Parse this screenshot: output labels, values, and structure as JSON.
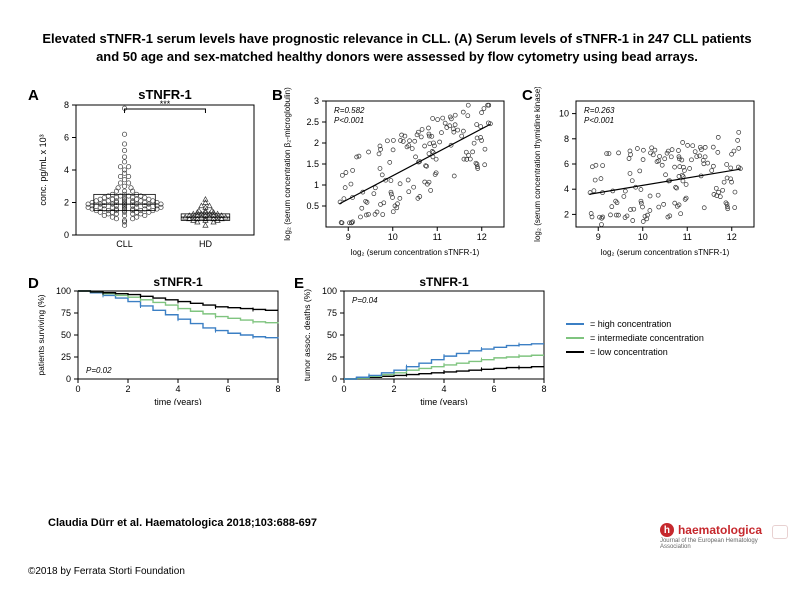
{
  "title": "Elevated sTNFR-1 serum levels have prognostic relevance in CLL. (A) Serum levels of sTNFR-1 in 247 CLL patients and 50 age and sex-matched healthy donors were assessed by flow cytometry using bead arrays.",
  "panelA": {
    "label": "A",
    "title": "sTNFR-1",
    "ylabel": "conc. pg/mL x 10³",
    "sig": "***",
    "yticks": [
      0,
      2,
      4,
      6,
      8
    ],
    "xcats": [
      "CLL",
      "HD"
    ],
    "cll_points": [
      [
        1,
        0.6
      ],
      [
        1,
        0.8
      ],
      [
        1,
        0.9
      ],
      [
        0.9,
        1.0
      ],
      [
        1.1,
        1.0
      ],
      [
        0.85,
        1.1
      ],
      [
        1.15,
        1.1
      ],
      [
        0.75,
        1.2
      ],
      [
        1.25,
        1.2
      ],
      [
        1,
        1.2
      ],
      [
        0.8,
        1.3
      ],
      [
        1.2,
        1.3
      ],
      [
        0.9,
        1.3
      ],
      [
        1.1,
        1.3
      ],
      [
        0.7,
        1.4
      ],
      [
        1.3,
        1.4
      ],
      [
        0.85,
        1.4
      ],
      [
        1.15,
        1.4
      ],
      [
        1,
        1.4
      ],
      [
        0.65,
        1.5
      ],
      [
        1.35,
        1.5
      ],
      [
        0.8,
        1.5
      ],
      [
        1.2,
        1.5
      ],
      [
        0.9,
        1.5
      ],
      [
        1.1,
        1.5
      ],
      [
        1,
        1.5
      ],
      [
        0.6,
        1.6
      ],
      [
        1.4,
        1.6
      ],
      [
        0.75,
        1.6
      ],
      [
        1.25,
        1.6
      ],
      [
        0.9,
        1.6
      ],
      [
        1.1,
        1.6
      ],
      [
        1,
        1.6
      ],
      [
        0.55,
        1.7
      ],
      [
        1.45,
        1.7
      ],
      [
        0.7,
        1.7
      ],
      [
        1.3,
        1.7
      ],
      [
        0.85,
        1.7
      ],
      [
        1.15,
        1.7
      ],
      [
        1,
        1.7
      ],
      [
        0.6,
        1.8
      ],
      [
        1.4,
        1.8
      ],
      [
        0.75,
        1.8
      ],
      [
        1.25,
        1.8
      ],
      [
        0.9,
        1.8
      ],
      [
        1.1,
        1.8
      ],
      [
        1,
        1.8
      ],
      [
        0.55,
        1.9
      ],
      [
        1.45,
        1.9
      ],
      [
        0.7,
        1.9
      ],
      [
        1.3,
        1.9
      ],
      [
        0.85,
        1.9
      ],
      [
        1.15,
        1.9
      ],
      [
        1,
        1.9
      ],
      [
        0.6,
        2.0
      ],
      [
        1.4,
        2.0
      ],
      [
        0.75,
        2.0
      ],
      [
        1.25,
        2.0
      ],
      [
        0.9,
        2.0
      ],
      [
        1.1,
        2.0
      ],
      [
        1,
        2.0
      ],
      [
        0.65,
        2.1
      ],
      [
        1.35,
        2.1
      ],
      [
        0.8,
        2.1
      ],
      [
        1.2,
        2.1
      ],
      [
        0.9,
        2.1
      ],
      [
        1.1,
        2.1
      ],
      [
        1,
        2.1
      ],
      [
        0.7,
        2.2
      ],
      [
        1.3,
        2.2
      ],
      [
        0.85,
        2.2
      ],
      [
        1.15,
        2.2
      ],
      [
        1,
        2.2
      ],
      [
        0.75,
        2.3
      ],
      [
        1.25,
        2.3
      ],
      [
        0.9,
        2.3
      ],
      [
        1.1,
        2.3
      ],
      [
        1,
        2.3
      ],
      [
        0.8,
        2.4
      ],
      [
        1.2,
        2.4
      ],
      [
        0.95,
        2.4
      ],
      [
        1.05,
        2.4
      ],
      [
        0.85,
        2.5
      ],
      [
        1.15,
        2.5
      ],
      [
        1,
        2.5
      ],
      [
        0.9,
        2.7
      ],
      [
        1.1,
        2.7
      ],
      [
        1,
        2.7
      ],
      [
        0.92,
        2.9
      ],
      [
        1.08,
        2.9
      ],
      [
        1,
        3.0
      ],
      [
        0.95,
        3.2
      ],
      [
        1.05,
        3.2
      ],
      [
        1,
        3.4
      ],
      [
        0.95,
        3.6
      ],
      [
        1.05,
        3.6
      ],
      [
        1,
        3.8
      ],
      [
        1,
        4.0
      ],
      [
        0.95,
        4.2
      ],
      [
        1.05,
        4.2
      ],
      [
        1,
        4.5
      ],
      [
        1,
        4.8
      ],
      [
        1,
        5.2
      ],
      [
        1,
        5.6
      ],
      [
        1,
        6.2
      ],
      [
        1,
        7.8
      ]
    ],
    "hd_points": [
      [
        2,
        0.6
      ],
      [
        1.9,
        0.8
      ],
      [
        2.1,
        0.8
      ],
      [
        1.85,
        0.9
      ],
      [
        2.15,
        0.9
      ],
      [
        2,
        0.9
      ],
      [
        1.8,
        1.0
      ],
      [
        2.2,
        1.0
      ],
      [
        1.9,
        1.0
      ],
      [
        2.1,
        1.0
      ],
      [
        2,
        1.0
      ],
      [
        1.75,
        1.1
      ],
      [
        2.25,
        1.1
      ],
      [
        1.85,
        1.1
      ],
      [
        2.15,
        1.1
      ],
      [
        1.95,
        1.1
      ],
      [
        2.05,
        1.1
      ],
      [
        1.8,
        1.2
      ],
      [
        2.2,
        1.2
      ],
      [
        1.9,
        1.2
      ],
      [
        2.1,
        1.2
      ],
      [
        2,
        1.2
      ],
      [
        1.85,
        1.3
      ],
      [
        2.15,
        1.3
      ],
      [
        1.95,
        1.3
      ],
      [
        2.05,
        1.3
      ],
      [
        1.9,
        1.4
      ],
      [
        2.1,
        1.4
      ],
      [
        2,
        1.4
      ],
      [
        1.92,
        1.5
      ],
      [
        2.08,
        1.5
      ],
      [
        2,
        1.5
      ],
      [
        2,
        1.7
      ],
      [
        1.95,
        1.8
      ],
      [
        2.05,
        1.8
      ],
      [
        2,
        2.0
      ],
      [
        2,
        2.2
      ]
    ],
    "box_cll": {
      "q1": 1.5,
      "med": 1.9,
      "q3": 2.5
    },
    "box_hd": {
      "q1": 0.9,
      "med": 1.1,
      "q3": 1.3
    }
  },
  "panelB": {
    "label": "B",
    "title": "",
    "xlabel": "log₂ (serum concentration sTNFR-1)",
    "ylabel": "log₂ (serum concentration β₂-microglobulin)",
    "stats": [
      "R=0.582",
      "P<0.001"
    ],
    "xlim": [
      8.5,
      12.5
    ],
    "ylim": [
      0,
      3.0
    ],
    "xticks": [
      9,
      10,
      11,
      12
    ],
    "yticks": [
      0.5,
      1.0,
      1.5,
      2.0,
      2.5,
      3.0
    ],
    "regline": [
      [
        8.8,
        0.55
      ],
      [
        12.2,
        2.45
      ]
    ]
  },
  "panelC": {
    "label": "C",
    "title": "",
    "xlabel": "log₂ (serum concentration sTNFR-1)",
    "ylabel": "log₂ (serum concentration thymidine kinase)",
    "stats": [
      "R=0.263",
      "P<0.001"
    ],
    "xlim": [
      8.5,
      12.5
    ],
    "ylim": [
      1,
      11
    ],
    "xticks": [
      9,
      10,
      11,
      12
    ],
    "yticks": [
      2,
      4,
      6,
      8,
      10
    ],
    "regline": [
      [
        8.8,
        3.6
      ],
      [
        12.2,
        5.6
      ]
    ]
  },
  "panelD": {
    "label": "D",
    "title": "sTNFR-1",
    "xlabel": "time (years)",
    "ylabel": "patients surviving (%)",
    "pval": "P=0.02",
    "xlim": [
      0,
      8
    ],
    "ylim": [
      0,
      100
    ],
    "xticks": [
      0,
      2,
      4,
      6,
      8
    ],
    "yticks": [
      0,
      25,
      50,
      75,
      100
    ],
    "curves": {
      "high": {
        "color": "#3b7fc4",
        "pts": [
          [
            0,
            100
          ],
          [
            0.5,
            98
          ],
          [
            1,
            95
          ],
          [
            1.5,
            92
          ],
          [
            2,
            88
          ],
          [
            2.5,
            83
          ],
          [
            3,
            78
          ],
          [
            3.5,
            73
          ],
          [
            4,
            68
          ],
          [
            4.5,
            63
          ],
          [
            5,
            58
          ],
          [
            5.5,
            55
          ],
          [
            6,
            52
          ],
          [
            6.5,
            50
          ],
          [
            7,
            48
          ],
          [
            7.5,
            47
          ],
          [
            8,
            46
          ]
        ]
      },
      "inter": {
        "color": "#7fc47f",
        "pts": [
          [
            0,
            100
          ],
          [
            0.5,
            99
          ],
          [
            1,
            97
          ],
          [
            1.5,
            95
          ],
          [
            2,
            93
          ],
          [
            2.5,
            90
          ],
          [
            3,
            87
          ],
          [
            3.5,
            84
          ],
          [
            4,
            80
          ],
          [
            4.5,
            77
          ],
          [
            5,
            74
          ],
          [
            5.5,
            71
          ],
          [
            6,
            69
          ],
          [
            6.5,
            67
          ],
          [
            7,
            65
          ],
          [
            7.5,
            64
          ],
          [
            8,
            63
          ]
        ]
      },
      "low": {
        "color": "#000000",
        "pts": [
          [
            0,
            100
          ],
          [
            0.5,
            99
          ],
          [
            1,
            98
          ],
          [
            1.5,
            97
          ],
          [
            2,
            96
          ],
          [
            2.5,
            94
          ],
          [
            3,
            92
          ],
          [
            3.5,
            90
          ],
          [
            4,
            88
          ],
          [
            4.5,
            86
          ],
          [
            5,
            84
          ],
          [
            5.5,
            82
          ],
          [
            6,
            81
          ],
          [
            6.5,
            80
          ],
          [
            7,
            79
          ],
          [
            7.5,
            78
          ],
          [
            8,
            78
          ]
        ]
      }
    }
  },
  "panelE": {
    "label": "E",
    "title": "sTNFR-1",
    "xlabel": "time (years)",
    "ylabel": "tumor assoc. deaths (%)",
    "pval": "P=0.04",
    "xlim": [
      0,
      8
    ],
    "ylim": [
      0,
      100
    ],
    "xticks": [
      0,
      2,
      4,
      6,
      8
    ],
    "yticks": [
      0,
      25,
      50,
      75,
      100
    ],
    "curves": {
      "low": {
        "color": "#000000",
        "pts": [
          [
            0,
            0
          ],
          [
            0.5,
            1
          ],
          [
            1,
            2
          ],
          [
            1.5,
            3
          ],
          [
            2,
            4
          ],
          [
            2.5,
            5
          ],
          [
            3,
            6
          ],
          [
            3.5,
            7
          ],
          [
            4,
            8
          ],
          [
            4.5,
            9
          ],
          [
            5,
            10
          ],
          [
            5.5,
            11
          ],
          [
            6,
            12
          ],
          [
            6.5,
            13
          ],
          [
            7,
            13
          ],
          [
            7.5,
            14
          ],
          [
            8,
            14
          ]
        ]
      },
      "inter": {
        "color": "#7fc47f",
        "pts": [
          [
            0,
            0
          ],
          [
            0.5,
            1
          ],
          [
            1,
            3
          ],
          [
            1.5,
            5
          ],
          [
            2,
            7
          ],
          [
            2.5,
            10
          ],
          [
            3,
            12
          ],
          [
            3.5,
            14
          ],
          [
            4,
            16
          ],
          [
            4.5,
            18
          ],
          [
            5,
            20
          ],
          [
            5.5,
            22
          ],
          [
            6,
            24
          ],
          [
            6.5,
            25
          ],
          [
            7,
            26
          ],
          [
            7.5,
            27
          ],
          [
            8,
            27
          ]
        ]
      },
      "high": {
        "color": "#3b7fc4",
        "pts": [
          [
            0,
            0
          ],
          [
            0.5,
            2
          ],
          [
            1,
            4
          ],
          [
            1.5,
            7
          ],
          [
            2,
            10
          ],
          [
            2.5,
            14
          ],
          [
            3,
            18
          ],
          [
            3.5,
            22
          ],
          [
            4,
            26
          ],
          [
            4.5,
            29
          ],
          [
            5,
            32
          ],
          [
            5.5,
            34
          ],
          [
            6,
            36
          ],
          [
            6.5,
            38
          ],
          [
            7,
            39
          ],
          [
            7.5,
            40
          ],
          [
            8,
            40
          ]
        ]
      }
    }
  },
  "legend": [
    {
      "label": "high concentration",
      "color": "#3b7fc4"
    },
    {
      "label": "intermediate concentration",
      "color": "#7fc47f"
    },
    {
      "label": "low concentration",
      "color": "#000000"
    }
  ],
  "citation": "Claudia Dürr et al. Haematologica 2018;103:688-697",
  "copyright": "©2018 by Ferrata Storti Foundation",
  "journal": {
    "name": "haematologica",
    "sub": "Journal of the European Hematology Association"
  }
}
